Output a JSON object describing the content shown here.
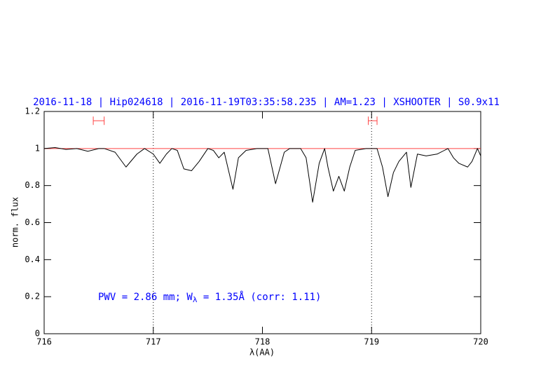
{
  "chart_data": {
    "type": "line",
    "title": "2016-11-18 | Hip024618 | 2016-11-19T03:35:58.235 | AM=1.23 | XSHOOTER | S0.9x11",
    "annotation": [
      "PWV = 2.86 mm; W",
      "λ",
      " = 1.35Å (corr: 1.11)"
    ],
    "x_label": "λ(AA)",
    "y_label": "norm. flux",
    "xlim": [
      716,
      720
    ],
    "ylim": [
      0,
      1.2
    ],
    "xticks": [
      716,
      717,
      718,
      719,
      720
    ],
    "yticks": [
      0,
      0.2,
      0.4,
      0.6,
      0.8,
      1,
      1.2
    ],
    "continuum": 1,
    "continuum_color": "#ff4444",
    "markers": [
      717,
      719
    ],
    "intervals": [
      [
        716.45,
        716.55
      ],
      [
        718.97,
        719.05
      ]
    ],
    "interval_y": 1.15,
    "series": [
      {
        "color": "#000000",
        "x": [
          716.0,
          716.1,
          716.2,
          716.3,
          716.4,
          716.5,
          716.55,
          716.65,
          716.75,
          716.85,
          716.92,
          717.0,
          717.06,
          717.12,
          717.17,
          717.22,
          717.28,
          717.35,
          717.42,
          717.5,
          717.55,
          717.6,
          717.65,
          717.73,
          717.78,
          717.85,
          717.95,
          718.05,
          718.12,
          718.2,
          718.25,
          718.35,
          718.4,
          718.46,
          718.52,
          718.57,
          718.6,
          718.65,
          718.7,
          718.75,
          718.8,
          718.85,
          718.95,
          719.05,
          719.1,
          719.15,
          719.2,
          719.25,
          719.32,
          719.36,
          719.42,
          719.5,
          719.6,
          719.7,
          719.75,
          719.8,
          719.88,
          719.92,
          719.97,
          720.0
        ],
        "values": [
          1.0,
          1.005,
          0.995,
          1.0,
          0.985,
          1.0,
          1.0,
          0.98,
          0.9,
          0.97,
          1.0,
          0.97,
          0.92,
          0.97,
          1.0,
          0.99,
          0.89,
          0.88,
          0.93,
          1.0,
          0.99,
          0.95,
          0.98,
          0.78,
          0.95,
          0.99,
          1.0,
          1.0,
          0.81,
          0.98,
          1.0,
          1.0,
          0.95,
          0.71,
          0.92,
          1.0,
          0.9,
          0.77,
          0.85,
          0.77,
          0.9,
          0.99,
          1.0,
          1.0,
          0.9,
          0.74,
          0.87,
          0.93,
          0.98,
          0.79,
          0.97,
          0.96,
          0.97,
          1.0,
          0.95,
          0.92,
          0.9,
          0.93,
          1.0,
          0.96
        ]
      }
    ]
  }
}
